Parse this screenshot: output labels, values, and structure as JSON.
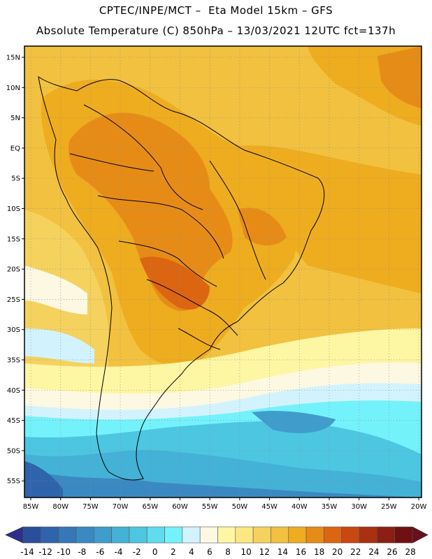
{
  "header": {
    "line1": "CPTEC/INPE/MCT –  Eta Model 15km – GFS",
    "line2": "Absolute Temperature (C) 850hPa – 13/03/2021 12UTC fct=137h"
  },
  "map": {
    "lat_labels": [
      "15N",
      "10N",
      "5N",
      "EQ",
      "5S",
      "10S",
      "15S",
      "20S",
      "25S",
      "30S",
      "35S",
      "40S",
      "45S",
      "50S",
      "55S"
    ],
    "lon_labels": [
      "85W",
      "80W",
      "75W",
      "70W",
      "65W",
      "60W",
      "55W",
      "50W",
      "45W",
      "40W",
      "35W",
      "30W",
      "25W",
      "20W"
    ]
  },
  "colorbar": {
    "labels": [
      "-14",
      "-12",
      "-10",
      "-8",
      "-6",
      "-4",
      "-2",
      "0",
      "2",
      "4",
      "6",
      "8",
      "10",
      "12",
      "14",
      "16",
      "18",
      "20",
      "22",
      "24",
      "26",
      "28"
    ],
    "colors": [
      "#2a4f9a",
      "#2e64ab",
      "#3577b8",
      "#3b89c2",
      "#3f9dcc",
      "#44b1d6",
      "#4dc6e2",
      "#5fdcee",
      "#74f2fb",
      "#d2f3fd",
      "#fdf8e2",
      "#fdf6a3",
      "#fbe880",
      "#f5d25e",
      "#f1c13f",
      "#eeac1f",
      "#e68c16",
      "#dc6512",
      "#c94711",
      "#ab3012",
      "#8b1f13",
      "#6f1111"
    ],
    "under_color": "#2b2f8e",
    "over_color": "#6a0f1e"
  }
}
